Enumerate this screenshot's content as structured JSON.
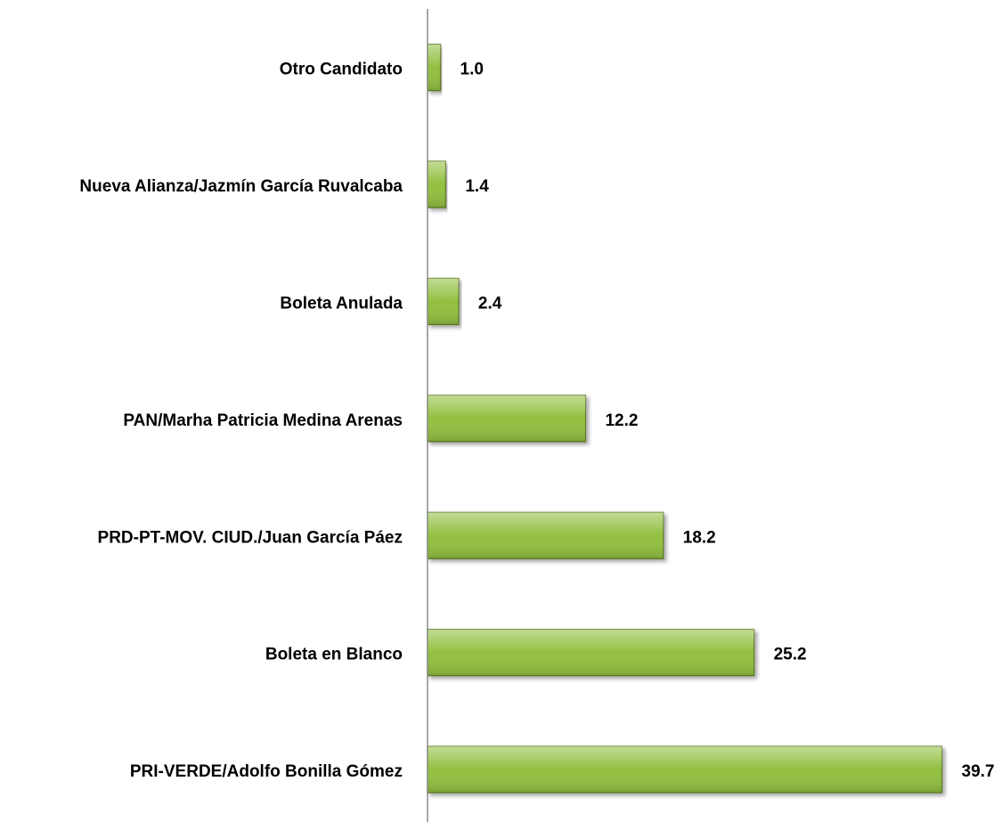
{
  "chart_data": {
    "type": "bar",
    "orientation": "horizontal",
    "categories": [
      "Otro Candidato",
      "Nueva Alianza/Jazmín García Ruvalcaba",
      "Boleta Anulada",
      "PAN/Marha Patricia Medina Arenas",
      "PRD-PT-MOV. CIUD./Juan García Páez",
      "Boleta en Blanco",
      "PRI-VERDE/Adolfo Bonilla Gómez"
    ],
    "values": [
      1.0,
      1.4,
      2.4,
      12.2,
      18.2,
      25.2,
      39.7
    ],
    "value_labels": [
      "1.0",
      "1.4",
      "2.4",
      "12.2",
      "18.2",
      "25.2",
      "39.7"
    ],
    "color": "#92c040",
    "xlim": [
      0,
      42
    ]
  }
}
